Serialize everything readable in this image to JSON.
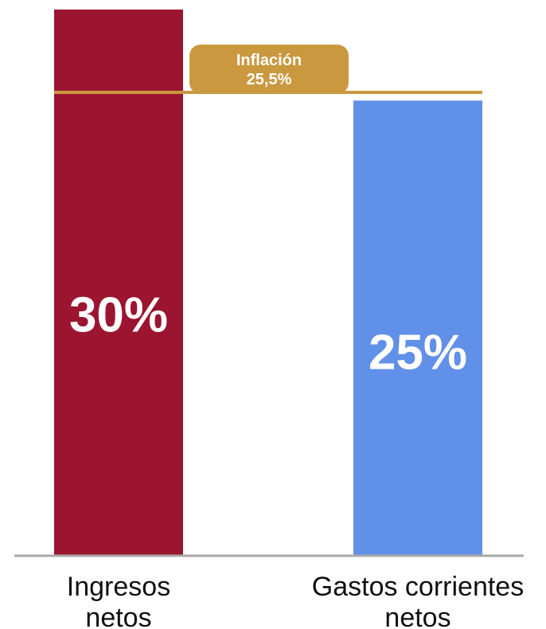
{
  "chart_data": {
    "type": "bar",
    "categories": [
      "Ingresos netos",
      "Gastos corrientes netos"
    ],
    "category_lines": [
      [
        "Ingresos",
        "netos"
      ],
      [
        "Gastos corrientes",
        "netos"
      ]
    ],
    "values": [
      30,
      25
    ],
    "value_labels": [
      "30%",
      "25%"
    ],
    "bar_colors": [
      "#9b1530",
      "#6090e8"
    ],
    "reference_line": {
      "value": 25.5,
      "label_lines": [
        "Inflación",
        "25,5%"
      ],
      "color": "#c9983f"
    },
    "axis_color": "#a8a8a8",
    "ylim": [
      0,
      30
    ],
    "grid": false,
    "title": "",
    "xlabel": "",
    "ylabel": ""
  }
}
